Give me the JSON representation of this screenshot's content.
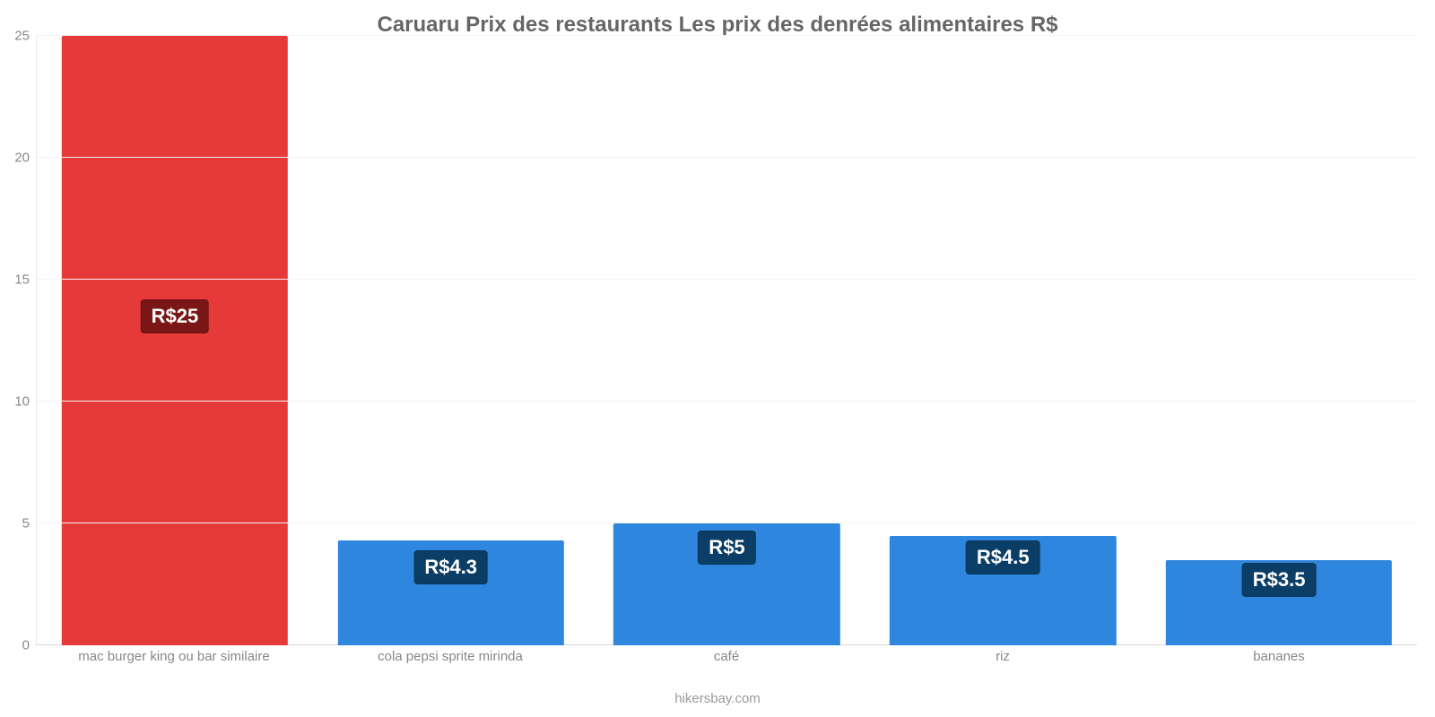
{
  "chart": {
    "type": "bar",
    "title": "Caruaru Prix des restaurants Les prix des denrées alimentaires R$",
    "title_fontsize": 24,
    "title_color": "#666666",
    "attribution": "hikersbay.com",
    "attribution_fontsize": 15,
    "attribution_color": "#9a9a9a",
    "background_color": "#ffffff",
    "grid_color": "#f2f2f2",
    "axis_color": "#e9e9e9",
    "ylim": [
      0,
      25
    ],
    "ytick_step": 5,
    "yticks": [
      "0",
      "5",
      "10",
      "15",
      "20",
      "25"
    ],
    "ytick_fontsize": 15,
    "ytick_color": "#888888",
    "xlabel_fontsize": 15,
    "xlabel_color": "#888888",
    "bar_width_pct": 82,
    "value_label_fontsize": 22,
    "categories": [
      "mac burger king ou bar similaire",
      "cola pepsi sprite mirinda",
      "café",
      "riz",
      "bananes"
    ],
    "values": [
      25,
      4.3,
      5,
      4.5,
      3.5
    ],
    "value_labels": [
      "R$25",
      "R$4.3",
      "R$5",
      "R$4.5",
      "R$3.5"
    ],
    "bar_colors": [
      "#e63a3a",
      "#2e86de",
      "#2e86de",
      "#2e86de",
      "#2e86de"
    ],
    "label_bg_colors": [
      "#7a1616",
      "#0b3e66",
      "#0b3e66",
      "#0b3e66",
      "#0b3e66"
    ],
    "label_y_value": [
      13.5,
      3.2,
      4.0,
      3.6,
      2.7
    ]
  }
}
